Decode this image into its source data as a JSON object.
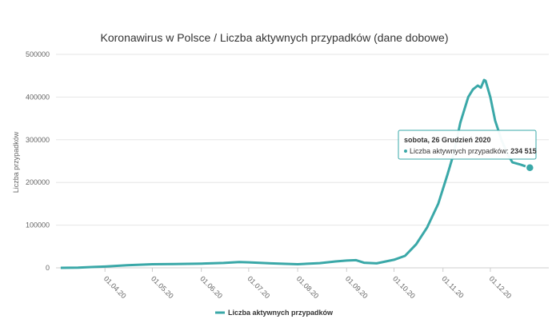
{
  "chart_data": {
    "type": "line",
    "title": "Koronawirus w Polsce / Liczba aktywnych przypadków (dane dobowe)",
    "ylabel": "Liczba przypadków",
    "xlabel": "",
    "ylim": [
      0,
      500000
    ],
    "y_ticks": [
      "0",
      "100000",
      "200000",
      "300000",
      "400000",
      "500000"
    ],
    "x_ticks": [
      {
        "date": "2020-04-01",
        "label": "01.04.20"
      },
      {
        "date": "2020-05-01",
        "label": "01.05.20"
      },
      {
        "date": "2020-06-01",
        "label": "01.06.20"
      },
      {
        "date": "2020-07-01",
        "label": "01.07.20"
      },
      {
        "date": "2020-08-01",
        "label": "01.08.20"
      },
      {
        "date": "2020-09-01",
        "label": "01.09.20"
      },
      {
        "date": "2020-10-01",
        "label": "01.10.20"
      },
      {
        "date": "2020-11-01",
        "label": "01.11.20"
      },
      {
        "date": "2020-12-01",
        "label": "01.12.20"
      }
    ],
    "grid": true,
    "legend_position": "bottom-center",
    "series": [
      {
        "name": "Liczba aktywnych przypadków",
        "color": "#3aa8a8",
        "points": [
          [
            "2020-03-04",
            0
          ],
          [
            "2020-03-15",
            500
          ],
          [
            "2020-03-25",
            2000
          ],
          [
            "2020-04-01",
            3000
          ],
          [
            "2020-04-15",
            6000
          ],
          [
            "2020-05-01",
            8500
          ],
          [
            "2020-05-15",
            9000
          ],
          [
            "2020-06-01",
            10000
          ],
          [
            "2020-06-15",
            11500
          ],
          [
            "2020-06-25",
            13500
          ],
          [
            "2020-07-01",
            13000
          ],
          [
            "2020-07-15",
            10500
          ],
          [
            "2020-08-01",
            8500
          ],
          [
            "2020-08-15",
            11000
          ],
          [
            "2020-08-25",
            15000
          ],
          [
            "2020-09-01",
            17000
          ],
          [
            "2020-09-07",
            18000
          ],
          [
            "2020-09-12",
            12000
          ],
          [
            "2020-09-20",
            10500
          ],
          [
            "2020-10-01",
            19000
          ],
          [
            "2020-10-08",
            28000
          ],
          [
            "2020-10-15",
            55000
          ],
          [
            "2020-10-22",
            95000
          ],
          [
            "2020-10-29",
            150000
          ],
          [
            "2020-11-04",
            220000
          ],
          [
            "2020-11-08",
            270000
          ],
          [
            "2020-11-12",
            340000
          ],
          [
            "2020-11-17",
            400000
          ],
          [
            "2020-11-20",
            418000
          ],
          [
            "2020-11-23",
            427000
          ],
          [
            "2020-11-25",
            422000
          ],
          [
            "2020-11-27",
            440000
          ],
          [
            "2020-11-28",
            438000
          ],
          [
            "2020-12-01",
            400000
          ],
          [
            "2020-12-04",
            345000
          ],
          [
            "2020-12-08",
            300000
          ],
          [
            "2020-12-12",
            265000
          ],
          [
            "2020-12-15",
            247000
          ],
          [
            "2020-12-20",
            242000
          ],
          [
            "2020-12-26",
            234515
          ]
        ]
      }
    ],
    "tooltip": {
      "date": "sobota, 26 Grudzień 2020",
      "series_label": "Liczba aktywnych przypadków: ",
      "value": "234 515",
      "point_date": "2020-12-26",
      "point_value": 234515
    }
  }
}
